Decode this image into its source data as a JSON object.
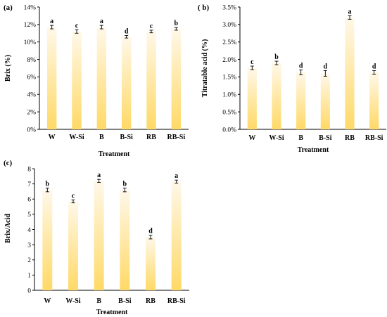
{
  "chart_data": [
    {
      "type": "bar",
      "panel": "(a)",
      "title": "",
      "xlabel": "Treatment",
      "ylabel": "Brix (%)",
      "categories": [
        "W",
        "W-Si",
        "B",
        "B-Si",
        "RB",
        "RB-Si"
      ],
      "values": [
        11.7,
        11.2,
        11.7,
        10.6,
        11.2,
        11.5
      ],
      "errors": [
        0.2,
        0.2,
        0.2,
        0.15,
        0.15,
        0.15
      ],
      "letters": [
        "a",
        "c",
        "a",
        "d",
        "c",
        "b"
      ],
      "ylim": [
        0,
        14
      ],
      "yticks": [
        0,
        2,
        4,
        6,
        8,
        10,
        12,
        14
      ],
      "ytick_labels": [
        "0%",
        "2%",
        "4%",
        "6%",
        "8%",
        "10%",
        "12%",
        "14%"
      ],
      "grid": false,
      "legend": "none",
      "bar_color_top": "#fff8ea",
      "bar_color_bottom": "#ffd966"
    },
    {
      "type": "bar",
      "panel": "( b)",
      "title": "",
      "xlabel": "Treatment",
      "ylabel": "Titratable acid (%)",
      "categories": [
        "W",
        "W-Si",
        "B",
        "B-Si",
        "RB",
        "RB-Si"
      ],
      "values": [
        1.76,
        1.9,
        1.63,
        1.6,
        3.2,
        1.63
      ],
      "errors": [
        0.05,
        0.05,
        0.07,
        0.08,
        0.05,
        0.05
      ],
      "letters": [
        "c",
        "b",
        "d",
        "d",
        "a",
        "d"
      ],
      "ylim": [
        0,
        3.5
      ],
      "yticks": [
        0,
        0.5,
        1,
        1.5,
        2,
        2.5,
        3,
        3.5
      ],
      "ytick_labels": [
        "0.0%",
        "0.5%",
        "1.0%",
        "1.5%",
        "2.0%",
        "2.5%",
        "3.0%",
        "3.5%"
      ],
      "grid": false,
      "legend": "none",
      "bar_color_top": "#fff8ea",
      "bar_color_bottom": "#ffd966"
    },
    {
      "type": "bar",
      "panel": "(c)",
      "title": "",
      "xlabel": "Treatment",
      "ylabel": "Brix/Acid",
      "categories": [
        "W",
        "W-Si",
        "B",
        "B-Si",
        "RB",
        "RB-Si"
      ],
      "values": [
        6.6,
        5.85,
        7.2,
        6.6,
        3.5,
        7.15
      ],
      "errors": [
        0.12,
        0.1,
        0.1,
        0.12,
        0.12,
        0.1
      ],
      "letters": [
        "b",
        "c",
        "a",
        "b",
        "d",
        "a"
      ],
      "ylim": [
        0,
        8
      ],
      "yticks": [
        0,
        1,
        2,
        3,
        4,
        5,
        6,
        7,
        8
      ],
      "ytick_labels": [
        "0",
        "1",
        "2",
        "3",
        "4",
        "5",
        "6",
        "7",
        "8"
      ],
      "grid": false,
      "legend": "none",
      "bar_color_top": "#fff8ea",
      "bar_color_bottom": "#ffd966"
    }
  ]
}
